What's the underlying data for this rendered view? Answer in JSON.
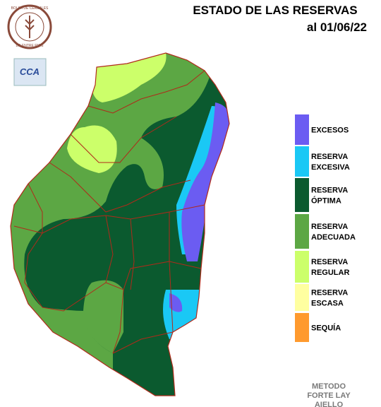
{
  "header": {
    "title": "ESTADO DE LAS RESERVAS",
    "date": "al 01/06/22"
  },
  "logos": {
    "bolsa": "BOLSA DE CEREALES",
    "bolsa_sub": "DE ENTRE RIOS",
    "cca": "CCA"
  },
  "legend": {
    "items": [
      {
        "lines": [
          "EXCESOS"
        ],
        "color": "#6b5cf2"
      },
      {
        "lines": [
          "RESERVA",
          "EXCESIVA"
        ],
        "color": "#1ac8f5"
      },
      {
        "lines": [
          "RESERVA",
          "ÓPTIMA"
        ],
        "color": "#0b5a2f"
      },
      {
        "lines": [
          "RESERVA",
          "ADECUADA"
        ],
        "color": "#5ca744"
      },
      {
        "lines": [
          "RESERVA",
          "REGULAR"
        ],
        "color": "#ccff6a"
      },
      {
        "lines": [
          "RESERVA",
          "ESCASA"
        ],
        "color": "#ffffa0"
      },
      {
        "lines": [
          "SEQUÍA"
        ],
        "color": "#ff9a2e"
      }
    ]
  },
  "footer": {
    "lines": [
      "METODO",
      "FORTE LAY",
      "AIELLO"
    ]
  }
}
